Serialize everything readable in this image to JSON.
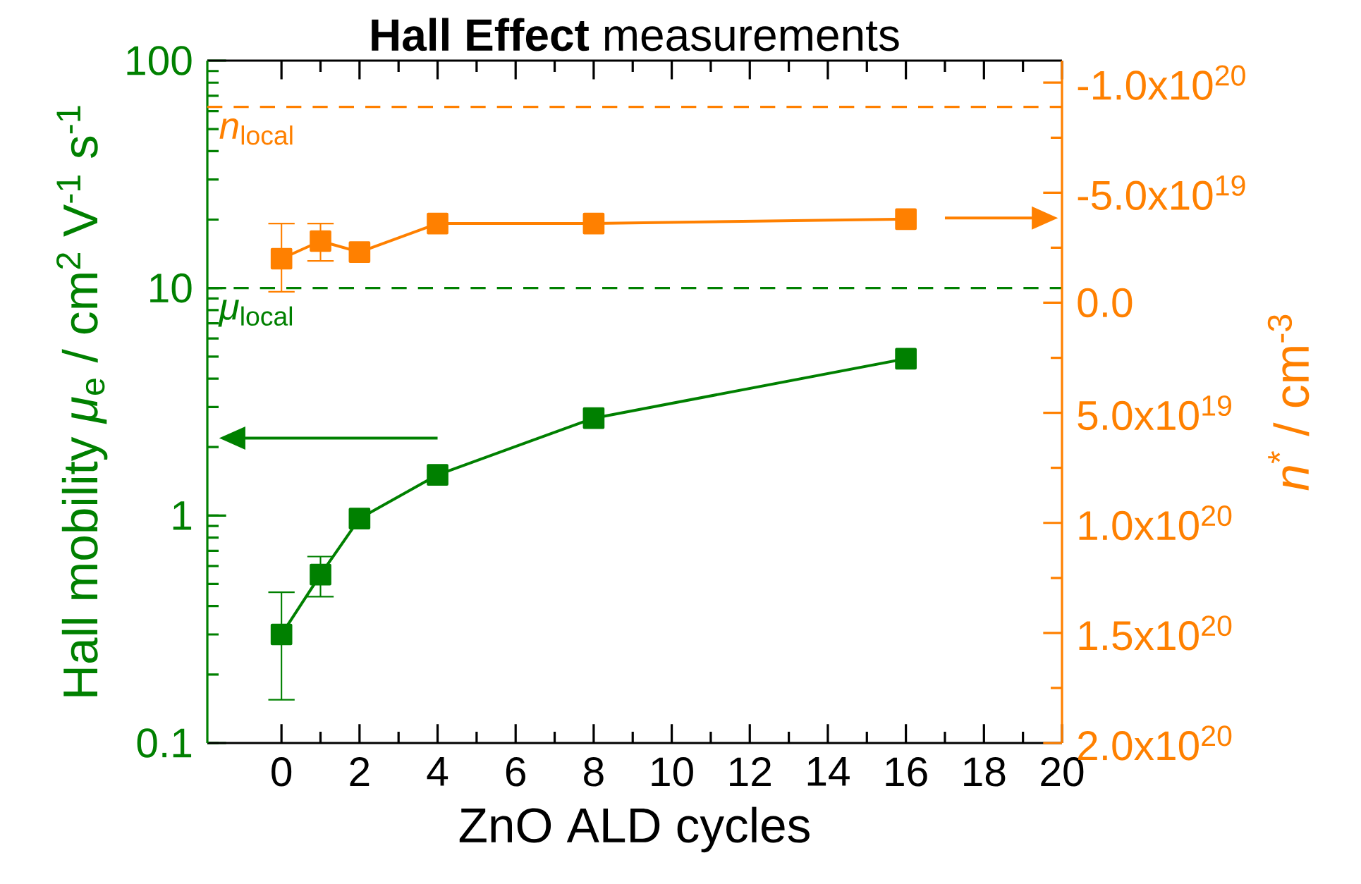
{
  "chart_data": {
    "type": "line",
    "title": "**Hall Effect** measurements",
    "xlabel": "ZnO ALD cycles",
    "ylabel": "Hall mobility *μ*$_{e}$ / cm$^{2}$ V$^{-1}$ s$^{-1}$",
    "y2label": "*n*$^{*}$ / cm$^{-3}$",
    "x": [
      0,
      1,
      2,
      4,
      8,
      16
    ],
    "series": [
      {
        "color": "#008000",
        "values": [
          0.3,
          0.55,
          0.97,
          1.51,
          2.68,
          4.89
        ],
        "errors": [
          [
            0.155,
            0.46
          ],
          [
            0.44,
            0.66
          ],
          null,
          null,
          null,
          null
        ]
      },
      {
        "color": "#ff8000",
        "axis": "y2",
        "values": [
          -2e+19,
          -2.8e+19,
          -2.3e+19,
          -3.6e+19,
          -3.6e+19,
          -3.8e+19
        ],
        "errors": [
          [
            -3.6e+19,
            -5e+18
          ],
          [
            -3.6e+19,
            -1.9e+19
          ],
          null,
          null,
          null,
          null
        ]
      }
    ],
    "xlim": [
      -1.9,
      20
    ],
    "xticks": [
      0,
      2,
      4,
      6,
      8,
      10,
      12,
      14,
      16,
      18,
      20
    ],
    "ylim": [
      0.1,
      100
    ],
    "yticks": [
      0.1,
      1,
      10,
      100
    ],
    "log": "y",
    "y2lim": [
      2e+20,
      -1.1e+20
    ],
    "y2ticks": [
      {
        "value": -1e+20,
        "label": "-1.0x10$^{20}$"
      },
      {
        "value": -5e+19,
        "label": "-5.0x10$^{19}$"
      },
      {
        "value": 0,
        "label": "0.0"
      },
      {
        "value": 5e+19,
        "label": "5.0x10$^{19}$"
      },
      {
        "value": 1e+20,
        "label": "1.0x10$^{20}$"
      },
      {
        "value": 1.5e+20,
        "label": "1.5x10$^{20}$"
      },
      {
        "value": 2e+20,
        "label": "2.0x10$^{20}$"
      }
    ],
    "ref_lines": [
      {
        "axis": "y",
        "value": 10,
        "label": "*μ*$_{local}$",
        "color": "#008000",
        "line_style": "dashed"
      },
      {
        "axis": "y2",
        "value": -8.9e+19,
        "label": "*n*$_{local}$",
        "color": "#ff8000",
        "line_style": "dashed"
      }
    ],
    "marker": "square",
    "line_style": "solid",
    "grid": false
  }
}
